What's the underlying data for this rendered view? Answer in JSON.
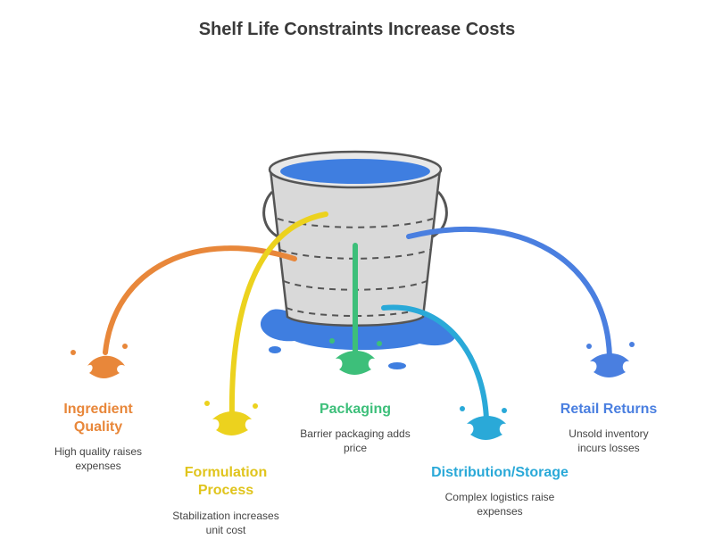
{
  "title": "Shelf Life Constraints Increase Costs",
  "items": [
    {
      "label": "Ingredient Quality",
      "description": "High quality raises expenses"
    },
    {
      "label": "Formulation Process",
      "description": "Stabilization increases unit cost"
    },
    {
      "label": "Packaging",
      "description": "Barrier packaging adds price"
    },
    {
      "label": "Distribution/Storage",
      "description": "Complex logistics raise expenses"
    },
    {
      "label": "Retail Returns",
      "description": "Unsold inventory incurs losses"
    }
  ]
}
